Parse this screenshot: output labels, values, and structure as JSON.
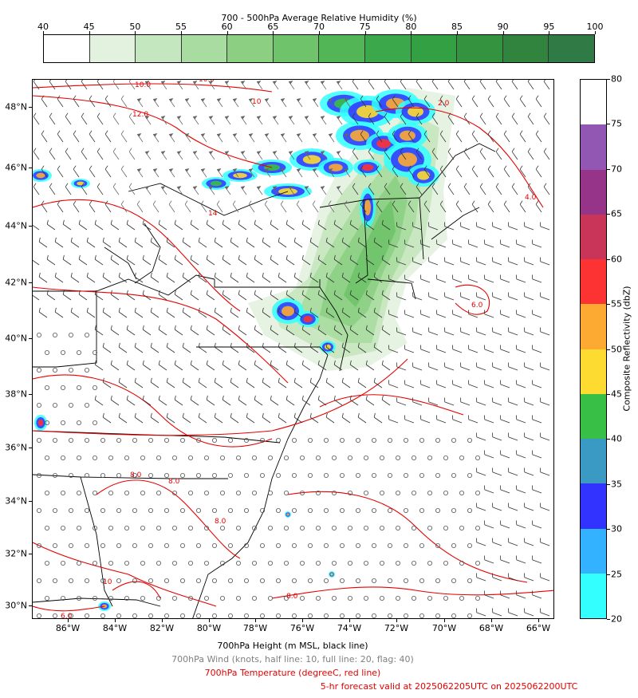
{
  "rh_colorbar": {
    "title": "700 - 500hPa Average Relative Humidity (%)",
    "ticks": [
      "40",
      "45",
      "50",
      "55",
      "60",
      "65",
      "70",
      "75",
      "80",
      "85",
      "90",
      "95",
      "100"
    ],
    "colors": [
      "#ffffff",
      "#e3f2df",
      "#c5e7bf",
      "#a9dca0",
      "#8ccf83",
      "#6fc36a",
      "#52b556",
      "#3aa84b",
      "#33a143",
      "#33933f",
      "#30843d",
      "#2f7a45",
      "#367151"
    ]
  },
  "map": {
    "lat_labels": [
      "48°N",
      "46°N",
      "44°N",
      "42°N",
      "40°N",
      "38°N",
      "36°N",
      "34°N",
      "32°N",
      "30°N"
    ],
    "lon_labels": [
      "86°W",
      "84°W",
      "82°W",
      "80°W",
      "78°W",
      "76°W",
      "74°W",
      "72°W",
      "70°W",
      "68°W",
      "66°W"
    ],
    "temp_labels": [
      "10.0",
      "10.0",
      "12.0",
      "10",
      "14",
      "2.0",
      "4.0",
      "6.0",
      "8.0",
      "8.0",
      "8.0",
      "10",
      "8.0",
      "6.0"
    ]
  },
  "dbz_colorbar": {
    "label": "Composite Reflectivity (dbZ)",
    "ticks": [
      "20",
      "25",
      "30",
      "35",
      "40",
      "45",
      "50",
      "55",
      "60",
      "65",
      "70",
      "75",
      "80"
    ],
    "colors": [
      "#33ffff",
      "#33b2ff",
      "#3333ff",
      "#3a9ac3",
      "#38bf45",
      "#fddb31",
      "#fdaa33",
      "#fd3333",
      "#c93459",
      "#96348a",
      "#9257b2",
      "#ffffff"
    ]
  },
  "captions": {
    "height": "700hPa Height (m MSL, black line)",
    "wind": "700hPa Wind (knots, half line: 10, full line: 20, flag: 40)",
    "temp": "700hPa Temperature (degreeC, red line)",
    "valid": "5-hr forecast valid at 2025062205UTC on 2025062200UTC"
  },
  "caption_colors": {
    "height": "#000000",
    "wind": "#808080",
    "temp": "#e60000",
    "valid": "#e60000"
  }
}
